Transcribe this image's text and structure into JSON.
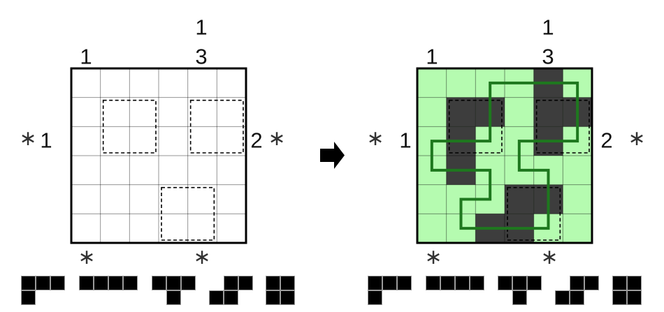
{
  "window": {
    "description_label": ""
  },
  "colors": {
    "cell_green": "#b5fbb0",
    "cell_dark": "#3d3d3d",
    "loop_green": "#1e781e",
    "grid_line": "rgba(0,0,0,0.42)",
    "border_black": "#000000",
    "piece_fill": "#000000",
    "piece_seam": "#9a9a9a",
    "dashed_region": "#000000"
  },
  "grid": {
    "rows": 6,
    "cols": 6
  },
  "clues": {
    "top_outer_col4": "1",
    "top_inner_col0": "1",
    "top_inner_col4": "3",
    "left_star": "∗",
    "left_number": "1",
    "right_number": "2",
    "right_star": "∗",
    "bottom_star_col0": "∗",
    "bottom_star_col4": "∗"
  },
  "dashed_regions": [
    {
      "row": 1,
      "col": 1,
      "size": 2
    },
    {
      "row": 1,
      "col": 4,
      "size": 2
    },
    {
      "row": 4,
      "col": 3,
      "size": 2
    }
  ],
  "puzzles": [
    {
      "id": "initial",
      "state": "unsolved",
      "shaded_cells": [],
      "loop_vertices": null
    },
    {
      "id": "solved",
      "state": "solved",
      "shaded_cells": [
        [
          0,
          4
        ],
        [
          1,
          1
        ],
        [
          1,
          2
        ],
        [
          1,
          4
        ],
        [
          1,
          5
        ],
        [
          2,
          1
        ],
        [
          2,
          4
        ],
        [
          3,
          1
        ],
        [
          4,
          3
        ],
        [
          4,
          4
        ],
        [
          5,
          2
        ],
        [
          5,
          3
        ]
      ],
      "loop_vertices": [
        [
          2,
          0
        ],
        [
          5,
          0
        ],
        [
          5,
          2
        ],
        [
          3,
          2
        ],
        [
          3,
          3
        ],
        [
          4,
          3
        ],
        [
          4,
          5
        ],
        [
          1,
          5
        ],
        [
          1,
          4
        ],
        [
          2,
          4
        ],
        [
          2,
          3
        ],
        [
          0,
          3
        ],
        [
          0,
          2
        ],
        [
          2,
          2
        ]
      ]
    }
  ],
  "pieces": {
    "bank": [
      {
        "name": "J",
        "cells": [
          [
            0,
            0
          ],
          [
            0,
            1
          ],
          [
            0,
            2
          ],
          [
            1,
            0
          ]
        ]
      },
      {
        "name": "I",
        "cells": [
          [
            0,
            0
          ],
          [
            0,
            1
          ],
          [
            0,
            2
          ],
          [
            0,
            3
          ]
        ]
      },
      {
        "name": "T",
        "cells": [
          [
            0,
            0
          ],
          [
            0,
            1
          ],
          [
            0,
            2
          ],
          [
            1,
            1
          ]
        ]
      },
      {
        "name": "S",
        "cells": [
          [
            0,
            1
          ],
          [
            0,
            2
          ],
          [
            1,
            0
          ],
          [
            1,
            1
          ]
        ]
      },
      {
        "name": "O",
        "cells": [
          [
            0,
            0
          ],
          [
            0,
            1
          ],
          [
            1,
            0
          ],
          [
            1,
            1
          ]
        ]
      }
    ]
  }
}
